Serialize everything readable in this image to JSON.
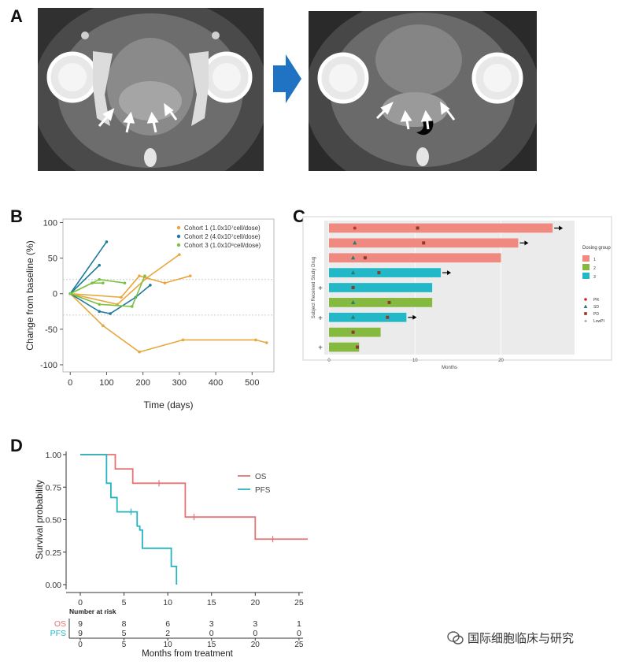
{
  "panels": {
    "a": "A",
    "b": "B",
    "c": "C",
    "d": "D"
  },
  "watermark": "国际细胞临床与研究",
  "chart_data": [
    {
      "type": "line",
      "panel": "B",
      "xlabel": "Time (days)",
      "ylabel": "Change from baseline (%)",
      "xlim": [
        -20,
        560
      ],
      "ylim": [
        -110,
        105
      ],
      "xticks": [
        0,
        100,
        200,
        300,
        400,
        500
      ],
      "yticks": [
        -100,
        -50,
        0,
        50,
        100
      ],
      "reference_lines": [
        20,
        -30
      ],
      "legend": [
        {
          "label": "Cohort 1 (1.0x10⁷cell/dose)",
          "color": "#e8a73c"
        },
        {
          "label": "Cohort 2 (4.0x10⁷cell/dose)",
          "color": "#1f7a9c"
        },
        {
          "label": "Cohort 3 (1.0x10⁸cell/dose)",
          "color": "#7cc242"
        }
      ],
      "series": [
        {
          "name": "Cohort 1 a",
          "cohort": 1,
          "points": [
            [
              0,
              0
            ],
            [
              90,
              -45
            ],
            [
              190,
              -82
            ],
            [
              310,
              -65
            ],
            [
              510,
              -65
            ],
            [
              540,
              -69
            ]
          ]
        },
        {
          "name": "Cohort 1 b",
          "cohort": 1,
          "points": [
            [
              0,
              0
            ],
            [
              130,
              -15
            ],
            [
              210,
              22
            ],
            [
              300,
              55
            ]
          ]
        },
        {
          "name": "Cohort 1 c",
          "cohort": 1,
          "points": [
            [
              0,
              0
            ],
            [
              140,
              -5
            ],
            [
              190,
              25
            ],
            [
              260,
              15
            ],
            [
              330,
              25
            ]
          ]
        },
        {
          "name": "Cohort 2 a",
          "cohort": 2,
          "points": [
            [
              0,
              0
            ],
            [
              80,
              40
            ]
          ]
        },
        {
          "name": "Cohort 2 b",
          "cohort": 2,
          "points": [
            [
              0,
              0
            ],
            [
              100,
              73
            ]
          ]
        },
        {
          "name": "Cohort 2 c",
          "cohort": 2,
          "points": [
            [
              0,
              0
            ],
            [
              80,
              -25
            ],
            [
              110,
              -28
            ],
            [
              180,
              -5
            ],
            [
              220,
              12
            ]
          ]
        },
        {
          "name": "Cohort 3 a",
          "cohort": 3,
          "points": [
            [
              0,
              0
            ],
            [
              80,
              20
            ],
            [
              150,
              15
            ]
          ]
        },
        {
          "name": "Cohort 3 b",
          "cohort": 3,
          "points": [
            [
              0,
              0
            ],
            [
              80,
              -15
            ],
            [
              170,
              -18
            ],
            [
              205,
              25
            ]
          ]
        },
        {
          "name": "Cohort 3 c",
          "cohort": 3,
          "points": [
            [
              0,
              0
            ],
            [
              60,
              15
            ],
            [
              90,
              15
            ]
          ]
        }
      ]
    },
    {
      "type": "bar",
      "panel": "C",
      "orientation": "horizontal",
      "xlabel": "Months",
      "ylabel": "Subject Received Study Drug",
      "xlim": [
        0,
        28
      ],
      "xticks": [
        0,
        10,
        20
      ],
      "legend_title": "Dosing group",
      "groups": [
        {
          "name": "1",
          "color": "#f08a80"
        },
        {
          "name": "2",
          "color": "#86b93f"
        },
        {
          "name": "3",
          "color": "#22b8c8"
        }
      ],
      "markers": [
        {
          "label": "PR",
          "symbol": "circle",
          "color": "#b8332f"
        },
        {
          "label": "SD",
          "symbol": "triangle",
          "color": "#2a7a6e"
        },
        {
          "label": "PD",
          "symbol": "square",
          "color": "#8c3a2c"
        },
        {
          "label": "LowPI",
          "symbol": "+",
          "color": "#444444"
        }
      ],
      "subjects": [
        {
          "group": "1",
          "months": 26,
          "ongoing": true,
          "lowpi": false,
          "events": [
            [
              "PR",
              3
            ],
            [
              "PD",
              10.3
            ]
          ]
        },
        {
          "group": "1",
          "months": 22,
          "ongoing": true,
          "lowpi": false,
          "events": [
            [
              "SD",
              3
            ],
            [
              "PD",
              11
            ]
          ]
        },
        {
          "group": "1",
          "months": 20,
          "ongoing": false,
          "lowpi": false,
          "events": [
            [
              "SD",
              2.8
            ],
            [
              "PD",
              4.2
            ]
          ]
        },
        {
          "group": "3",
          "months": 13,
          "ongoing": true,
          "lowpi": false,
          "events": [
            [
              "SD",
              2.8
            ],
            [
              "PD",
              5.8
            ]
          ]
        },
        {
          "group": "3",
          "months": 12,
          "ongoing": false,
          "lowpi": true,
          "events": [
            [
              "PD",
              2.8
            ]
          ]
        },
        {
          "group": "2",
          "months": 12,
          "ongoing": false,
          "lowpi": false,
          "events": [
            [
              "SD",
              2.8
            ],
            [
              "PD",
              7
            ]
          ]
        },
        {
          "group": "3",
          "months": 9,
          "ongoing": true,
          "lowpi": true,
          "events": [
            [
              "SD",
              2.8
            ],
            [
              "PD",
              6.8
            ]
          ]
        },
        {
          "group": "2",
          "months": 6,
          "ongoing": false,
          "lowpi": false,
          "events": [
            [
              "PD",
              2.8
            ]
          ]
        },
        {
          "group": "2",
          "months": 3.5,
          "ongoing": false,
          "lowpi": true,
          "events": [
            [
              "PD",
              3.3
            ]
          ]
        }
      ]
    },
    {
      "type": "line",
      "subtype": "kaplan-meier",
      "panel": "D",
      "xlabel": "Months from treatment",
      "ylabel": "Survival probability",
      "xlim": [
        0,
        26
      ],
      "ylim": [
        0,
        1
      ],
      "xticks": [
        0,
        5,
        10,
        15,
        20,
        25
      ],
      "yticks": [
        "0.00",
        "0.25",
        "0.50",
        "0.75",
        "1.00"
      ],
      "yticks_values": [
        0,
        0.25,
        0.5,
        0.75,
        1
      ],
      "series": [
        {
          "name": "OS",
          "color": "#e57373",
          "steps": [
            [
              0,
              1
            ],
            [
              4,
              0.89
            ],
            [
              6,
              0.78
            ],
            [
              12,
              0.52
            ],
            [
              20,
              0.35
            ],
            [
              26,
              0.35
            ]
          ],
          "censored": [
            [
              9,
              0.78
            ],
            [
              13,
              0.52
            ],
            [
              22,
              0.35
            ]
          ]
        },
        {
          "name": "PFS",
          "color": "#26b5c0",
          "steps": [
            [
              0,
              1
            ],
            [
              3,
              0.78
            ],
            [
              3.5,
              0.67
            ],
            [
              4.2,
              0.56
            ],
            [
              6.5,
              0.45
            ],
            [
              6.8,
              0.42
            ],
            [
              7.1,
              0.28
            ],
            [
              10.4,
              0.14
            ],
            [
              11,
              0
            ]
          ],
          "censored": [
            [
              5.8,
              0.56
            ]
          ]
        }
      ],
      "risk_table": {
        "title": "Number at risk",
        "times": [
          0,
          5,
          10,
          15,
          20,
          25
        ],
        "rows": [
          {
            "label": "OS",
            "color": "#e57373",
            "counts": [
              9,
              8,
              6,
              3,
              3,
              1
            ]
          },
          {
            "label": "PFS",
            "color": "#26b5c0",
            "counts": [
              9,
              5,
              2,
              0,
              0,
              0
            ]
          }
        ]
      }
    }
  ]
}
